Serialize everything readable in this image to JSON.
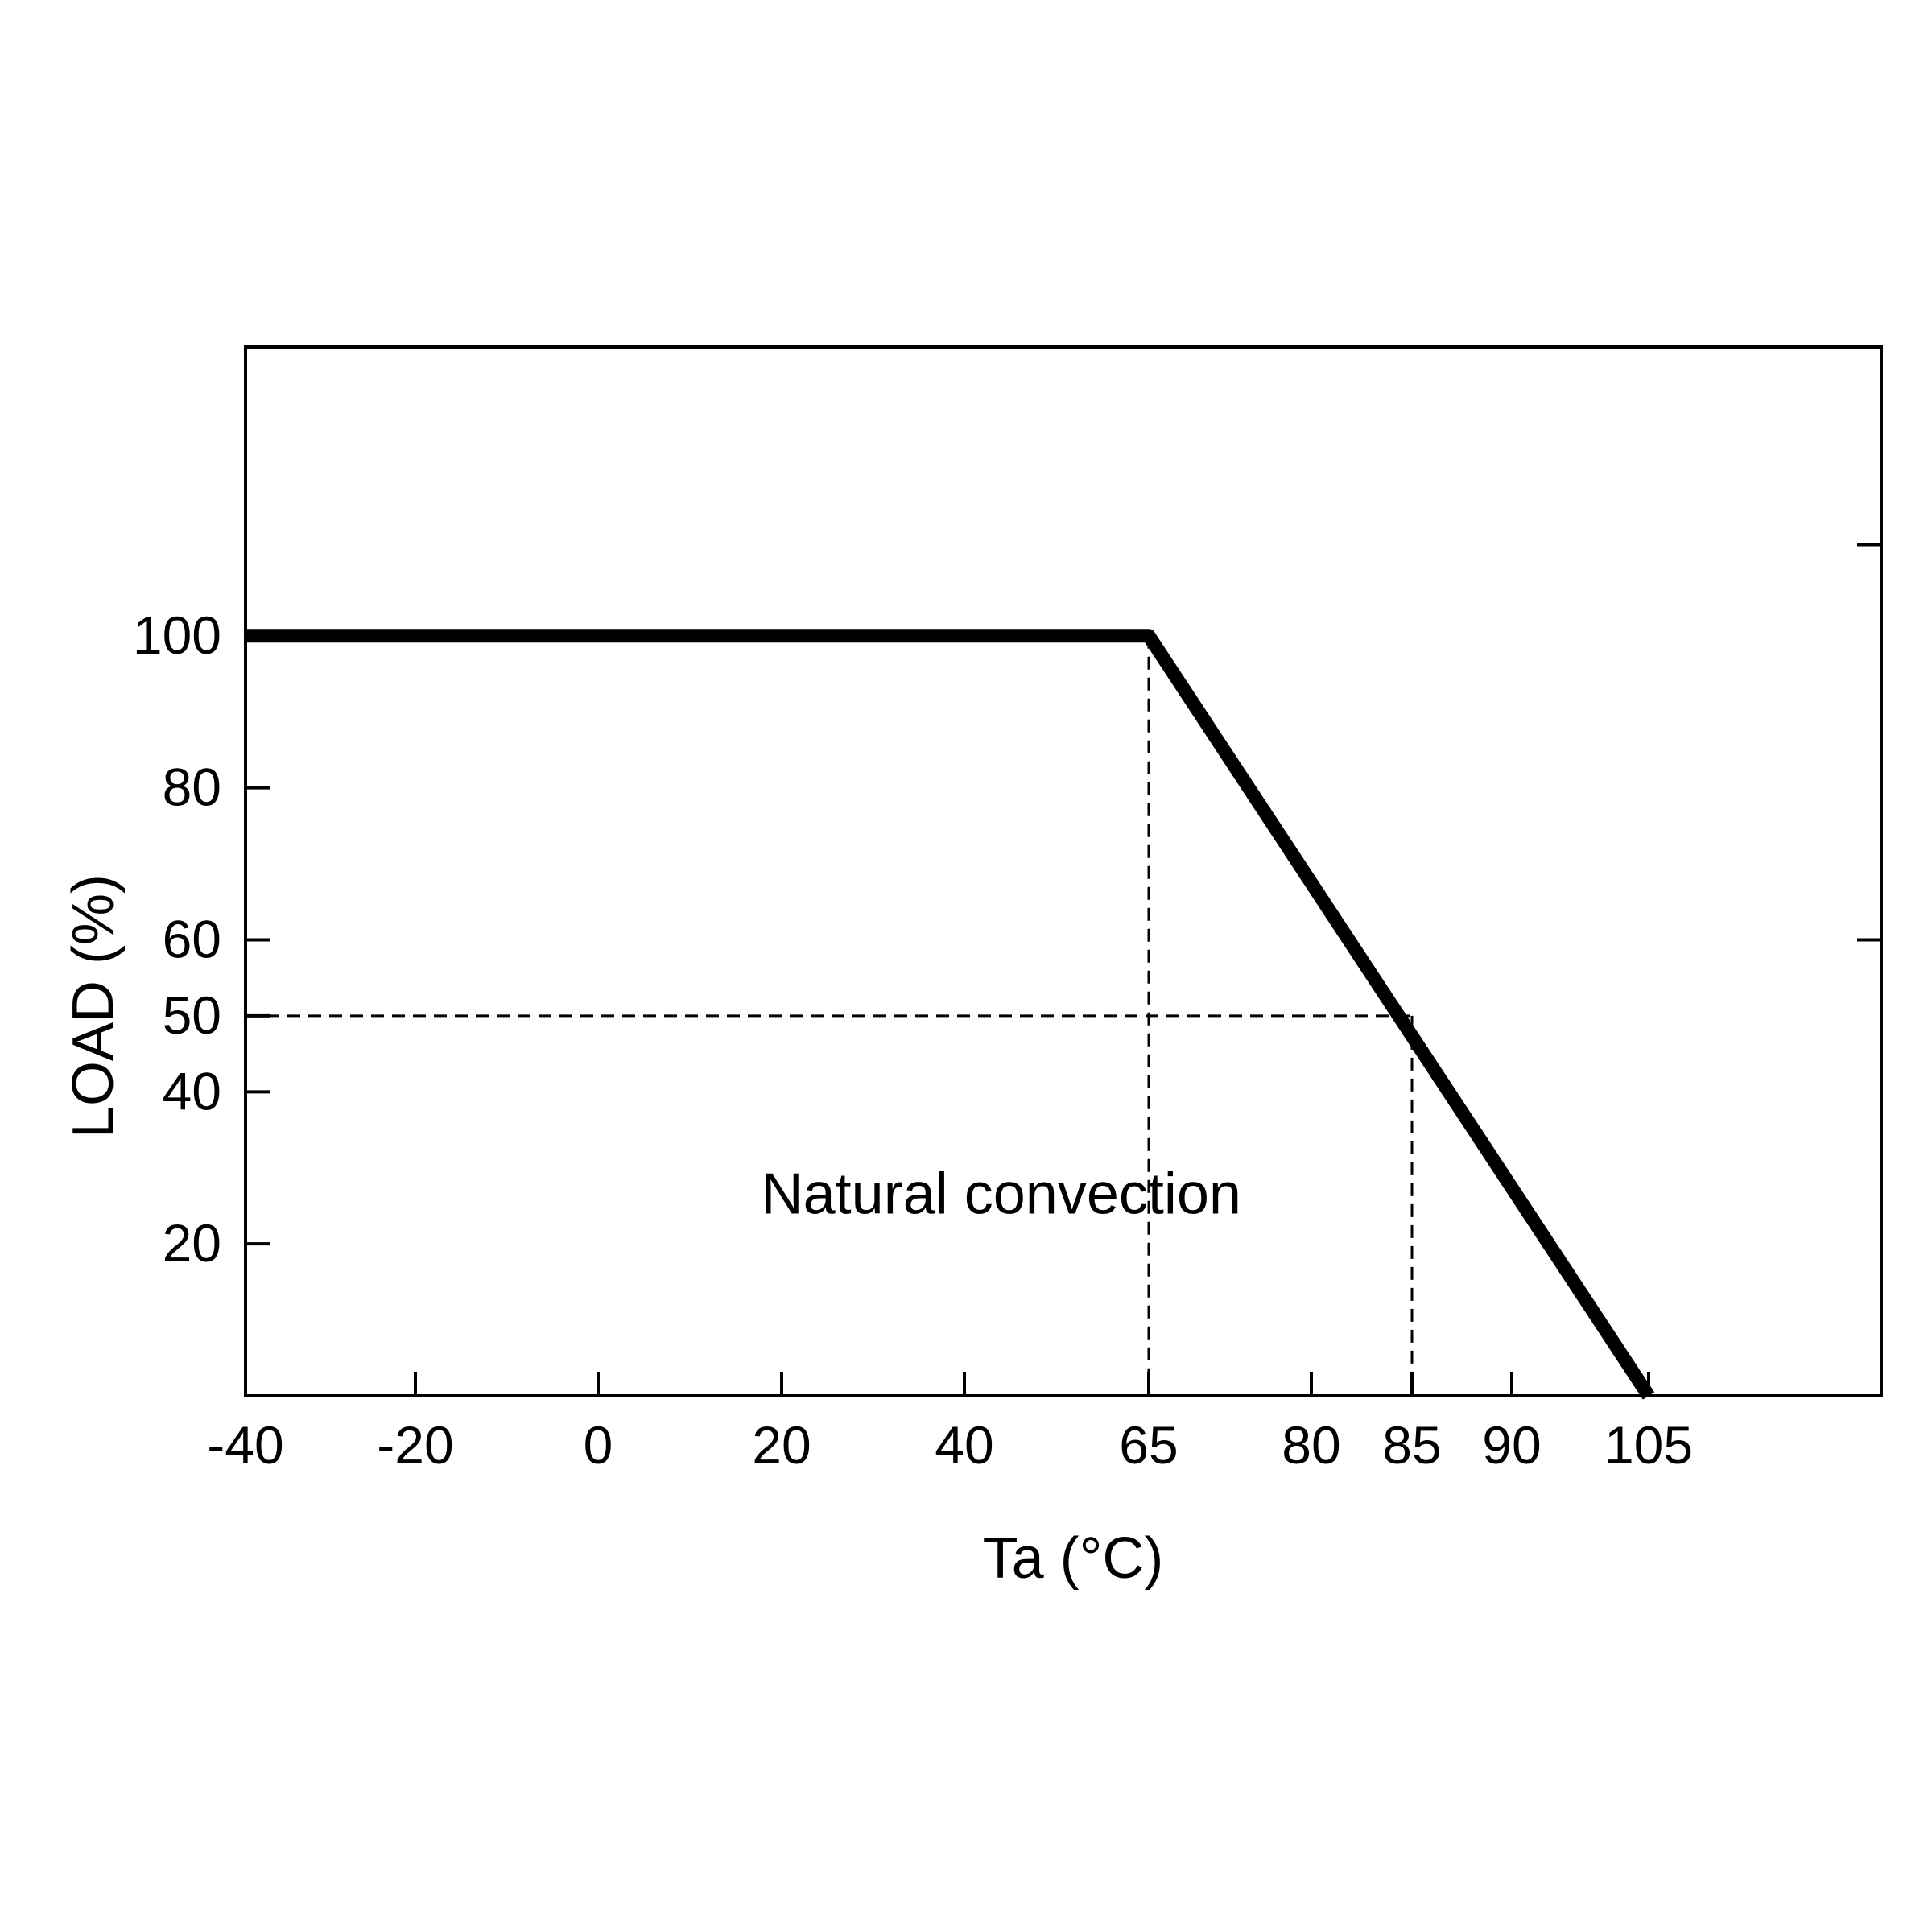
{
  "chart_data": {
    "type": "line",
    "title": "",
    "xlabel": "Ta (°C)",
    "ylabel": "LOAD (%)",
    "x_ticks": [
      -40,
      -20,
      0,
      20,
      40,
      65,
      80,
      85,
      90,
      105
    ],
    "y_ticks": [
      20,
      40,
      50,
      60,
      80,
      100
    ],
    "y_right_ticks": [
      60,
      112
    ],
    "ylim": [
      0,
      138
    ],
    "series": [
      {
        "x": [
          -40,
          65,
          105
        ],
        "y": [
          100,
          100,
          0
        ]
      }
    ],
    "reference_lines": [
      {
        "style": "dashed",
        "points": [
          [
            65,
            100
          ],
          [
            65,
            0
          ]
        ]
      },
      {
        "style": "dashed",
        "points": [
          [
            85,
            50
          ],
          [
            85,
            0
          ]
        ]
      },
      {
        "style": "dashed",
        "points": [
          [
            -40,
            50
          ],
          [
            85,
            50
          ]
        ]
      }
    ],
    "annotations": [
      {
        "text": "Natural convection",
        "x": 45,
        "y": 24
      }
    ],
    "grid": false,
    "colors": {
      "line": "#000000",
      "frame": "#000000",
      "background": "#ffffff"
    }
  }
}
